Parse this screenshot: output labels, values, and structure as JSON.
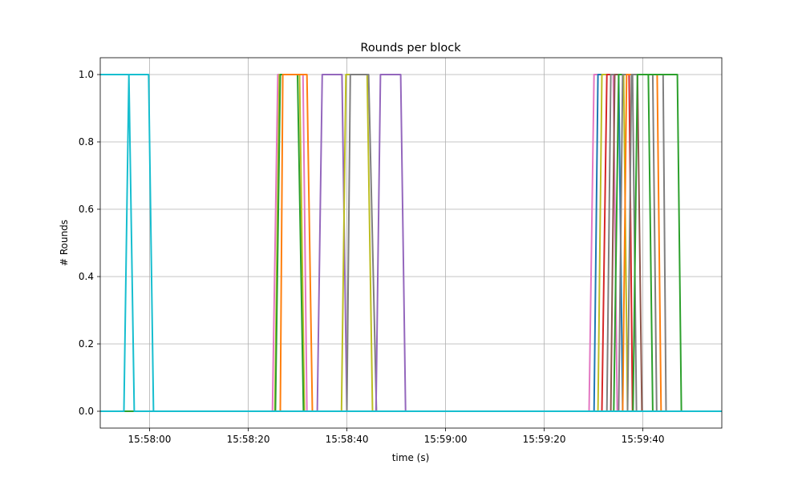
{
  "chart_data": {
    "type": "line",
    "title": "Rounds per block",
    "xlabel": "time (s)",
    "ylabel": "# Rounds",
    "xlim": [
      "15:57:50",
      "15:59:56"
    ],
    "ylim": [
      -0.05,
      1.05
    ],
    "grid": true,
    "xticks": [
      "15:58:00",
      "15:58:20",
      "15:58:40",
      "15:59:00",
      "15:59:20",
      "15:59:40"
    ],
    "yticks": [
      "0.0",
      "0.2",
      "0.4",
      "0.6",
      "0.8",
      "1.0"
    ],
    "series": [
      {
        "color": "#e377c2",
        "x": [
          "15:57:50",
          "15:58:24.9",
          "15:58:26.0",
          "15:58:31.1",
          "15:58:31.9",
          "15:59:56"
        ],
        "y": [
          0,
          0,
          1,
          1,
          0,
          0
        ]
      },
      {
        "color": "#bcbd22",
        "x": [
          "15:57:50",
          "15:58:25.4",
          "15:58:26.3",
          "15:58:30.4",
          "15:58:31.4",
          "15:59:56"
        ],
        "y": [
          0,
          0,
          1,
          1,
          0,
          0
        ]
      },
      {
        "color": "#2ca02c",
        "x": [
          "15:57:50",
          "15:58:25.5",
          "15:58:26.5",
          "15:58:30.0",
          "15:58:31.2",
          "15:59:56"
        ],
        "y": [
          0,
          0,
          1,
          1,
          0,
          0
        ]
      },
      {
        "color": "#ff7f0e",
        "x": [
          "15:57:50",
          "15:58:26.5",
          "15:58:27.0",
          "15:58:31.9",
          "15:58:33.0",
          "15:59:56"
        ],
        "y": [
          0,
          0,
          1,
          1,
          0,
          0
        ]
      },
      {
        "color": "#9467bd",
        "x": [
          "15:57:50",
          "15:58:34.0",
          "15:58:35.0",
          "15:58:39.0",
          "15:58:40.0",
          "15:59:56"
        ],
        "y": [
          0,
          0,
          1,
          1,
          0,
          0
        ]
      },
      {
        "color": "#bcbd22",
        "x": [
          "15:57:50",
          "15:58:38.9",
          "15:58:39.8",
          "15:58:44.1",
          "15:58:45.2",
          "15:59:56"
        ],
        "y": [
          0,
          0,
          1,
          1,
          0,
          0
        ]
      },
      {
        "color": "#7f7f7f",
        "x": [
          "15:57:50",
          "15:58:40.0",
          "15:58:40.7",
          "15:58:44.4",
          "15:58:46.0",
          "15:59:56"
        ],
        "y": [
          0,
          0,
          1,
          1,
          0,
          0
        ]
      },
      {
        "color": "#9467bd",
        "x": [
          "15:57:50",
          "15:58:45.9",
          "15:58:46.8",
          "15:58:50.9",
          "15:58:51.9",
          "15:59:56"
        ],
        "y": [
          0,
          0,
          1,
          1,
          0,
          0
        ]
      },
      {
        "color": "#e377c2",
        "x": [
          "15:57:50",
          "15:59:29.1",
          "15:59:30.1",
          "15:59:34.0",
          "15:59:34.8",
          "15:59:56"
        ],
        "y": [
          0,
          0,
          1,
          1,
          0,
          0
        ]
      },
      {
        "color": "#1f77b4",
        "x": [
          "15:57:50",
          "15:59:30.1",
          "15:59:30.9",
          "15:59:35.1",
          "15:59:35.9",
          "15:59:56"
        ],
        "y": [
          0,
          0,
          1,
          1,
          0,
          0
        ]
      },
      {
        "color": "#bcbd22",
        "x": [
          "15:57:50",
          "15:59:30.9",
          "15:59:31.7",
          "15:59:36.1",
          "15:59:36.9",
          "15:59:56"
        ],
        "y": [
          0,
          0,
          1,
          1,
          0,
          0
        ]
      },
      {
        "color": "#d62728",
        "x": [
          "15:57:50",
          "15:59:31.7",
          "15:59:32.7",
          "15:59:37.2",
          "15:59:37.9",
          "15:59:56"
        ],
        "y": [
          0,
          0,
          1,
          1,
          0,
          0
        ]
      },
      {
        "color": "#7f7f7f",
        "x": [
          "15:57:50",
          "15:59:32.7",
          "15:59:33.5",
          "15:59:37.9",
          "15:59:38.7",
          "15:59:56"
        ],
        "y": [
          0,
          0,
          1,
          1,
          0,
          0
        ]
      },
      {
        "color": "#8c564b",
        "x": [
          "15:57:50",
          "15:59:33.5",
          "15:59:34.3",
          "15:59:38.9",
          "15:59:39.8",
          "15:59:56"
        ],
        "y": [
          0,
          0,
          1,
          1,
          0,
          0
        ]
      },
      {
        "color": "#2ca02c",
        "x": [
          "15:57:50",
          "15:59:34.1",
          "15:59:35.1",
          "15:59:41.1",
          "15:59:42.0",
          "15:59:56"
        ],
        "y": [
          0,
          0,
          1,
          1,
          0,
          0
        ]
      },
      {
        "color": "#7f7f7f",
        "x": [
          "15:57:50",
          "15:59:35.1",
          "15:59:35.9",
          "15:59:42.0",
          "15:59:42.8",
          "15:59:56"
        ],
        "y": [
          0,
          0,
          1,
          1,
          0,
          0
        ]
      },
      {
        "color": "#ff7f0e",
        "x": [
          "15:57:50",
          "15:59:35.9",
          "15:59:36.7",
          "15:59:42.9",
          "15:59:43.7",
          "15:59:56"
        ],
        "y": [
          0,
          0,
          1,
          1,
          0,
          0
        ]
      },
      {
        "color": "#7f7f7f",
        "x": [
          "15:57:50",
          "15:59:36.9",
          "15:59:37.7",
          "15:59:44.1",
          "15:59:44.7",
          "15:59:56"
        ],
        "y": [
          0,
          0,
          1,
          1,
          0,
          0
        ]
      },
      {
        "color": "#2ca02c",
        "x": [
          "15:57:50",
          "15:59:38.0",
          "15:59:38.9",
          "15:59:47.0",
          "15:59:47.8",
          "15:59:56"
        ],
        "y": [
          0,
          0,
          1,
          1,
          0,
          0
        ]
      },
      {
        "color": "#17becf",
        "x": [
          "15:57:50",
          "15:57:54.8",
          "15:57:55.8",
          "15:57:56.9",
          "15:59:56"
        ],
        "y": [
          0,
          0,
          1,
          0,
          0
        ]
      },
      {
        "color": "#17becf",
        "x": [
          "15:57:50",
          "15:57:59.8",
          "15:58:00.8",
          "15:59:56"
        ],
        "y": [
          1,
          1,
          0,
          0
        ]
      }
    ]
  }
}
